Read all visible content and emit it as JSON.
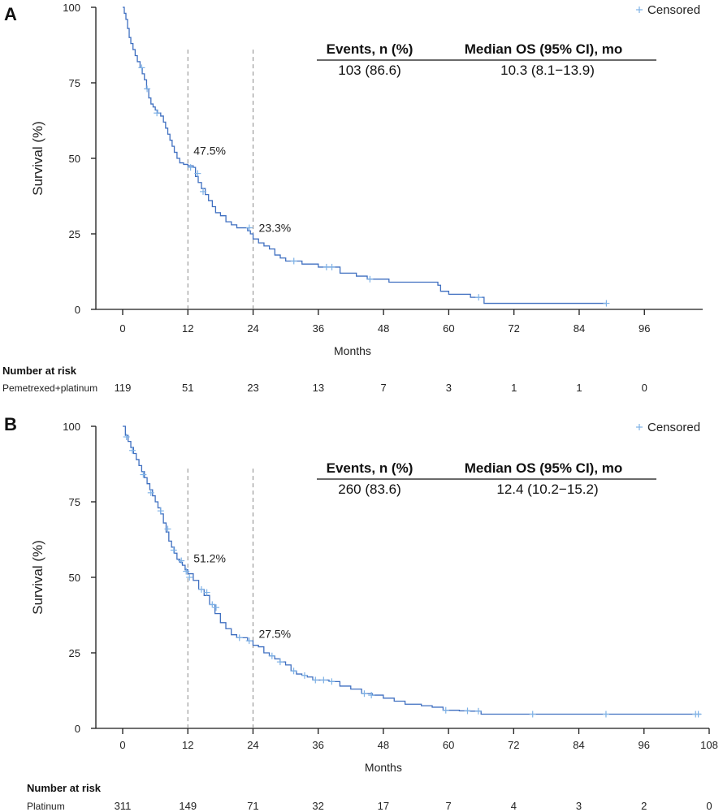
{
  "chart_data": [
    {
      "panel": "A",
      "type": "line",
      "ylabel": "Survival (%)",
      "xlabel": "Months",
      "xticks": [
        0,
        12,
        24,
        36,
        48,
        60,
        72,
        84,
        96
      ],
      "yticks": [
        0,
        25,
        50,
        75,
        100
      ],
      "xlim": [
        0,
        106
      ],
      "ylim": [
        0,
        100
      ],
      "legend": "Censored",
      "reference_lines": [
        {
          "x": 12,
          "y": 47.5,
          "label": "47.5%"
        },
        {
          "x": 24,
          "y": 23.3,
          "label": "23.3%"
        }
      ],
      "table": {
        "headers": [
          "Events, n (%)",
          "Median OS (95% CI), mo"
        ],
        "values": [
          "103 (86.6)",
          "10.3 (8.1−13.9)"
        ]
      },
      "risk": {
        "title": "Number at risk",
        "label": "Pemetrexed+platinum",
        "times": [
          0,
          12,
          24,
          36,
          48,
          60,
          72,
          84,
          96
        ],
        "counts": [
          "119",
          "51",
          "23",
          "13",
          "7",
          "3",
          "1",
          "1",
          "0"
        ]
      },
      "series": [
        {
          "name": "Pemetrexed+platinum",
          "points": [
            [
              0,
              100
            ],
            [
              0.3,
              98
            ],
            [
              0.6,
              96
            ],
            [
              0.9,
              93
            ],
            [
              1.2,
              90
            ],
            [
              1.5,
              88
            ],
            [
              1.9,
              86
            ],
            [
              2.3,
              84
            ],
            [
              2.7,
              82
            ],
            [
              3.2,
              80
            ],
            [
              3.6,
              78
            ],
            [
              4.0,
              76
            ],
            [
              4.4,
              73
            ],
            [
              4.8,
              70
            ],
            [
              5.2,
              68
            ],
            [
              5.6,
              67
            ],
            [
              6.0,
              66
            ],
            [
              6.4,
              65
            ],
            [
              7.0,
              64
            ],
            [
              7.5,
              62
            ],
            [
              7.9,
              60
            ],
            [
              8.3,
              58
            ],
            [
              8.7,
              56
            ],
            [
              9.1,
              54
            ],
            [
              9.5,
              52
            ],
            [
              10.0,
              50
            ],
            [
              10.5,
              48.5
            ],
            [
              11.2,
              48
            ],
            [
              12.0,
              47.5
            ],
            [
              13.0,
              47
            ],
            [
              13.4,
              44
            ],
            [
              13.9,
              42
            ],
            [
              14.5,
              40
            ],
            [
              15.2,
              38
            ],
            [
              15.8,
              36
            ],
            [
              16.5,
              34
            ],
            [
              17.1,
              32
            ],
            [
              18.0,
              31
            ],
            [
              19.0,
              29
            ],
            [
              20.0,
              28
            ],
            [
              21.0,
              27
            ],
            [
              22.0,
              27
            ],
            [
              23.0,
              26
            ],
            [
              23.5,
              25
            ],
            [
              24.0,
              23.3
            ],
            [
              25.0,
              22
            ],
            [
              26.0,
              21
            ],
            [
              27.0,
              20
            ],
            [
              28.0,
              18
            ],
            [
              29.0,
              17
            ],
            [
              30.0,
              16
            ],
            [
              31.0,
              16
            ],
            [
              32.0,
              16
            ],
            [
              33.0,
              15
            ],
            [
              35.0,
              15
            ],
            [
              36.0,
              14
            ],
            [
              38.0,
              14
            ],
            [
              40.0,
              12
            ],
            [
              43.0,
              11
            ],
            [
              45.0,
              10
            ],
            [
              47.0,
              10
            ],
            [
              49.0,
              9
            ],
            [
              52.0,
              9
            ],
            [
              56.0,
              9
            ],
            [
              58.0,
              8
            ],
            [
              58.5,
              6
            ],
            [
              60.0,
              5
            ],
            [
              62.0,
              5
            ],
            [
              64.0,
              4
            ],
            [
              66.0,
              4
            ],
            [
              66.5,
              2
            ],
            [
              72.0,
              2
            ],
            [
              80.0,
              2
            ],
            [
              89.0,
              2
            ]
          ]
        }
      ],
      "censored": [
        [
          3.5,
          80
        ],
        [
          4.5,
          73
        ],
        [
          6.3,
          65
        ],
        [
          12.5,
          47
        ],
        [
          13.8,
          45
        ],
        [
          14.8,
          39
        ],
        [
          23.3,
          27
        ],
        [
          31.5,
          16
        ],
        [
          37.5,
          14
        ],
        [
          38.5,
          14
        ],
        [
          45.5,
          10
        ],
        [
          65.5,
          4
        ],
        [
          89.0,
          2
        ]
      ]
    },
    {
      "panel": "B",
      "type": "line",
      "ylabel": "Survival (%)",
      "xlabel": "Months",
      "xticks": [
        0,
        12,
        24,
        36,
        48,
        60,
        72,
        84,
        96,
        108
      ],
      "yticks": [
        0,
        25,
        50,
        75,
        100
      ],
      "xlim": [
        0,
        108
      ],
      "ylim": [
        0,
        100
      ],
      "legend": "Censored",
      "reference_lines": [
        {
          "x": 12,
          "y": 51.2,
          "label": "51.2%"
        },
        {
          "x": 24,
          "y": 27.5,
          "label": "27.5%"
        }
      ],
      "table": {
        "headers": [
          "Events, n (%)",
          "Median OS (95% CI), mo"
        ],
        "values": [
          "260 (83.6)",
          "12.4 (10.2−15.2)"
        ]
      },
      "risk": {
        "title": "Number at risk",
        "label": "Platinum",
        "times": [
          0,
          12,
          24,
          36,
          48,
          60,
          72,
          84,
          96,
          108
        ],
        "counts": [
          "311",
          "149",
          "71",
          "32",
          "17",
          "7",
          "4",
          "3",
          "2",
          "0"
        ]
      },
      "series": [
        {
          "name": "Platinum",
          "points": [
            [
              0,
              100
            ],
            [
              0.5,
              97
            ],
            [
              1.0,
              95
            ],
            [
              1.5,
              93
            ],
            [
              2.0,
              91
            ],
            [
              2.5,
              89
            ],
            [
              3.0,
              87
            ],
            [
              3.5,
              85
            ],
            [
              4.0,
              83
            ],
            [
              4.5,
              81
            ],
            [
              5.0,
              79
            ],
            [
              5.5,
              77
            ],
            [
              6.0,
              75
            ],
            [
              6.5,
              73
            ],
            [
              7.0,
              71
            ],
            [
              7.5,
              68
            ],
            [
              8.0,
              65
            ],
            [
              8.5,
              62
            ],
            [
              9.0,
              60
            ],
            [
              9.5,
              58
            ],
            [
              10.0,
              56
            ],
            [
              10.5,
              55
            ],
            [
              11.0,
              54
            ],
            [
              11.5,
              52.5
            ],
            [
              12.0,
              51.2
            ],
            [
              13.0,
              49
            ],
            [
              14.0,
              46
            ],
            [
              15.0,
              44
            ],
            [
              16.0,
              41
            ],
            [
              17.0,
              38
            ],
            [
              18.0,
              35
            ],
            [
              19.0,
              33
            ],
            [
              20.0,
              31
            ],
            [
              21.0,
              30
            ],
            [
              22.0,
              30
            ],
            [
              23.0,
              29
            ],
            [
              24.0,
              27.5
            ],
            [
              25.0,
              27
            ],
            [
              26.0,
              25
            ],
            [
              27.0,
              24
            ],
            [
              28.0,
              23
            ],
            [
              29.0,
              22
            ],
            [
              30.0,
              21
            ],
            [
              31.0,
              19
            ],
            [
              32.0,
              18
            ],
            [
              33.0,
              17.5
            ],
            [
              34.0,
              17
            ],
            [
              35.0,
              16
            ],
            [
              36.0,
              16
            ],
            [
              38.0,
              15.5
            ],
            [
              40.0,
              14
            ],
            [
              42.0,
              13
            ],
            [
              44.0,
              11.5
            ],
            [
              46.0,
              11
            ],
            [
              48.0,
              10
            ],
            [
              50.0,
              9
            ],
            [
              52.0,
              8
            ],
            [
              55.0,
              7.5
            ],
            [
              57.0,
              7
            ],
            [
              59.0,
              6
            ],
            [
              62.0,
              5.8
            ],
            [
              64.0,
              5.7
            ],
            [
              66.0,
              4.7
            ],
            [
              72.0,
              4.7
            ],
            [
              90.0,
              4.7
            ],
            [
              106.5,
              4.7
            ]
          ]
        }
      ],
      "censored": [
        [
          0.7,
          96.5
        ],
        [
          1.8,
          92
        ],
        [
          3.8,
          84
        ],
        [
          5.2,
          78
        ],
        [
          7.0,
          72
        ],
        [
          8.3,
          66
        ],
        [
          9.4,
          59
        ],
        [
          10.8,
          55.5
        ],
        [
          11.7,
          52
        ],
        [
          12.3,
          50
        ],
        [
          14.5,
          46
        ],
        [
          15.5,
          45
        ],
        [
          16.5,
          41
        ],
        [
          17.2,
          40
        ],
        [
          21.5,
          30
        ],
        [
          23.3,
          29
        ],
        [
          27.5,
          24
        ],
        [
          29.0,
          22
        ],
        [
          31.5,
          19
        ],
        [
          33.5,
          17.5
        ],
        [
          35.5,
          16
        ],
        [
          37.0,
          16
        ],
        [
          38.5,
          15.5
        ],
        [
          44.5,
          11.5
        ],
        [
          45.8,
          11
        ],
        [
          59.5,
          6
        ],
        [
          63.5,
          5.8
        ],
        [
          65.5,
          5.7
        ],
        [
          75.5,
          4.7
        ],
        [
          89.0,
          4.7
        ],
        [
          105.5,
          4.7
        ],
        [
          106.0,
          4.7
        ]
      ]
    }
  ]
}
